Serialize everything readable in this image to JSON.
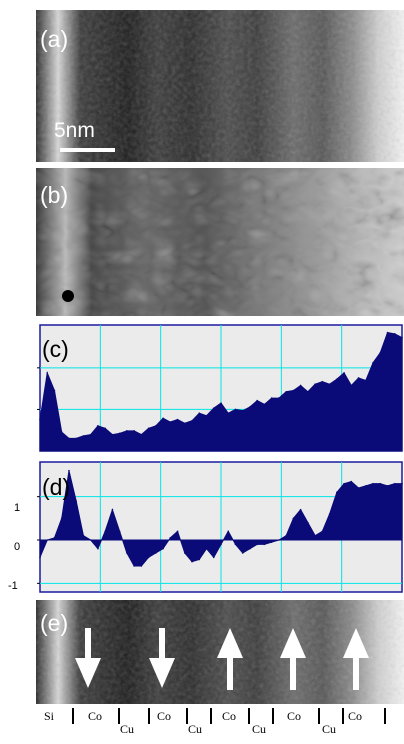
{
  "panels": {
    "a": {
      "label": "(a)",
      "scalebar": "5nm"
    },
    "b": {
      "label": "(b)"
    },
    "c": {
      "label": "(c)"
    },
    "d": {
      "label": "(d)",
      "yticks": [
        "1",
        "0",
        "-1"
      ]
    },
    "e": {
      "label": "(e)",
      "arrows": [
        "down",
        "down",
        "up",
        "up",
        "up"
      ]
    }
  },
  "layers": [
    {
      "name": "Si",
      "row": "top"
    },
    {
      "name": "Co",
      "row": "top"
    },
    {
      "name": "Cu",
      "row": "bottom"
    },
    {
      "name": "Co",
      "row": "top"
    },
    {
      "name": "Cu",
      "row": "bottom"
    },
    {
      "name": "Co",
      "row": "top"
    },
    {
      "name": "Cu",
      "row": "bottom"
    },
    {
      "name": "Co",
      "row": "top"
    },
    {
      "name": "Cu",
      "row": "bottom"
    },
    {
      "name": "Co",
      "row": "top"
    }
  ],
  "chart_data": [
    {
      "type": "area",
      "panel": "c",
      "grid": true,
      "x": [
        0,
        2,
        4,
        6,
        8,
        10,
        12,
        14,
        16,
        18,
        20,
        22,
        24,
        26,
        28,
        30,
        32,
        34,
        36,
        38,
        40,
        42,
        44,
        46,
        48,
        50,
        52,
        54,
        56,
        58,
        60,
        62,
        64,
        66,
        68,
        70,
        72,
        74,
        76,
        78,
        80,
        82,
        84,
        86,
        88,
        90,
        92,
        94,
        96,
        98,
        100
      ],
      "values": [
        0.25,
        0.62,
        0.48,
        0.15,
        0.1,
        0.1,
        0.12,
        0.13,
        0.2,
        0.18,
        0.13,
        0.14,
        0.16,
        0.16,
        0.13,
        0.18,
        0.2,
        0.26,
        0.23,
        0.25,
        0.22,
        0.24,
        0.3,
        0.28,
        0.34,
        0.38,
        0.3,
        0.33,
        0.32,
        0.35,
        0.4,
        0.37,
        0.42,
        0.42,
        0.47,
        0.48,
        0.52,
        0.47,
        0.53,
        0.55,
        0.53,
        0.57,
        0.62,
        0.52,
        0.58,
        0.56,
        0.7,
        0.78,
        0.94,
        0.93,
        0.9
      ],
      "ylim": [
        0,
        1
      ]
    },
    {
      "type": "area",
      "panel": "d",
      "grid": true,
      "x": [
        0,
        2,
        4,
        6,
        8,
        10,
        12,
        14,
        16,
        18,
        20,
        22,
        24,
        26,
        28,
        30,
        32,
        34,
        36,
        38,
        40,
        42,
        44,
        46,
        48,
        50,
        52,
        54,
        56,
        58,
        60,
        62,
        64,
        66,
        68,
        70,
        72,
        74,
        76,
        78,
        80,
        82,
        84,
        86,
        88,
        90,
        92,
        94,
        96,
        98,
        100
      ],
      "values": [
        -0.4,
        0.0,
        0.05,
        0.5,
        1.6,
        0.9,
        0.1,
        0.0,
        -0.2,
        0.2,
        0.7,
        0.2,
        -0.3,
        -0.6,
        -0.6,
        -0.4,
        -0.3,
        -0.2,
        0.05,
        0.2,
        -0.3,
        -0.5,
        -0.45,
        -0.2,
        -0.4,
        -0.1,
        0.2,
        -0.1,
        -0.3,
        -0.2,
        -0.1,
        -0.1,
        -0.05,
        0.0,
        0.1,
        0.5,
        0.7,
        0.4,
        0.1,
        0.2,
        0.6,
        1.1,
        1.3,
        1.35,
        1.2,
        1.25,
        1.3,
        1.3,
        1.25,
        1.3,
        1.3
      ],
      "ylim": [
        -1.2,
        1.8
      ],
      "yticks": [
        1,
        0,
        -1
      ]
    }
  ]
}
